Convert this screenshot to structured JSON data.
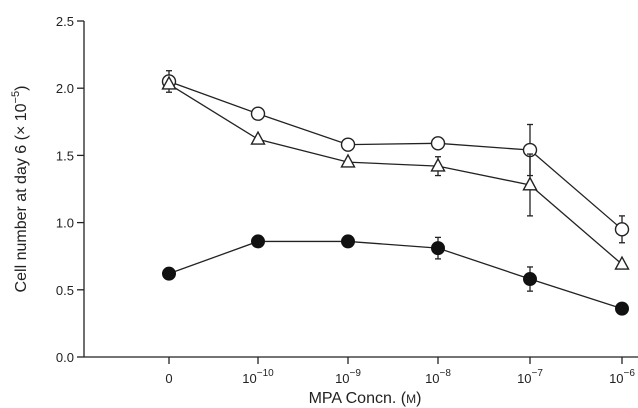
{
  "chart_data": {
    "type": "line",
    "xlabel_main": "MPA Concn. (",
    "xlabel_unit": "M",
    "xlabel_close": ")",
    "ylabel_main": "Cell number at day 6 (× 10",
    "ylabel_exp": "−5",
    "ylabel_close": ")",
    "ylim": [
      0,
      2.5
    ],
    "yticks": [
      "0.0",
      "0.5",
      "1.0",
      "1.5",
      "2.0",
      "2.5"
    ],
    "ytick_values": [
      0,
      0.5,
      1.0,
      1.5,
      2.0,
      2.5
    ],
    "categories": [
      {
        "base": "0",
        "exp": ""
      },
      {
        "base": "10",
        "exp": "−10"
      },
      {
        "base": "10",
        "exp": "−9"
      },
      {
        "base": "10",
        "exp": "−8"
      },
      {
        "base": "10",
        "exp": "−7"
      },
      {
        "base": "10",
        "exp": "−6"
      }
    ],
    "series": [
      {
        "marker": "open-circle",
        "values": [
          2.05,
          1.81,
          1.58,
          1.59,
          1.54,
          0.95
        ],
        "error": [
          0.08,
          0.0,
          0.0,
          0.0,
          0.19,
          0.1
        ]
      },
      {
        "marker": "open-triangle",
        "values": [
          2.03,
          1.62,
          1.45,
          1.42,
          1.28,
          0.69
        ],
        "error": [
          0.0,
          0.0,
          0.0,
          0.07,
          0.23,
          0.0
        ]
      },
      {
        "marker": "filled-circle",
        "values": [
          0.62,
          0.86,
          0.86,
          0.81,
          0.58,
          0.36
        ],
        "error": [
          0.0,
          0.0,
          0.0,
          0.08,
          0.09,
          0.0
        ]
      }
    ]
  }
}
